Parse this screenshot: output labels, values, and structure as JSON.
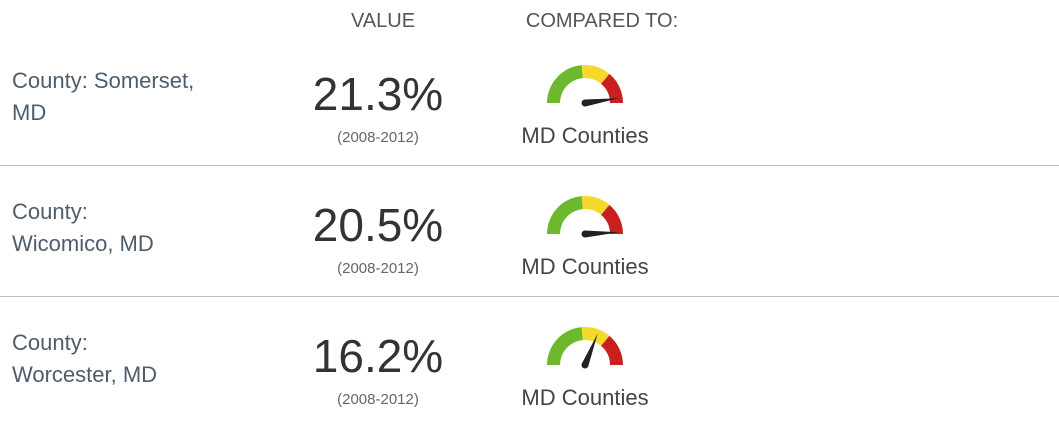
{
  "header": {
    "value": "VALUE",
    "compared_to": "COMPARED TO:"
  },
  "rows": [
    {
      "label": [
        "County: Somerset,",
        "MD"
      ],
      "value": "21.3%",
      "period": "(2008-2012)",
      "comparison": "MD Counties"
    },
    {
      "label": [
        "County:",
        "Wicomico, MD"
      ],
      "value": "20.5%",
      "period": "(2008-2012)",
      "comparison": "MD Counties"
    },
    {
      "label": [
        "County:",
        "Worcester, MD"
      ],
      "value": "16.2%",
      "period": "(2008-2012)",
      "comparison": "MD Counties"
    }
  ]
}
